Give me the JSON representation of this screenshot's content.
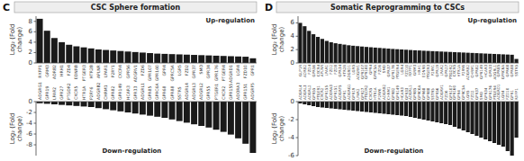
{
  "chart_data": [
    {
      "type": "bar",
      "title": "CSC Sphere formation",
      "annotations": [
        "C",
        "Up-regulation"
      ],
      "ylabel": "Log₂ (Fold\nchange)",
      "color": "#1a1a1a",
      "grid": false,
      "categories": [
        "RXFP1",
        "GRM3",
        "ADRB2",
        "HRH1",
        "FZD4",
        "EDNRB",
        "PTGER3",
        "HTR2B",
        "APLNR",
        "LPAR1",
        "P2RY1",
        "CXCR4",
        "GPR56",
        "ADGRV1",
        "FZD6",
        "GPR107",
        "GPR160",
        "GPR4",
        "GPRC5A",
        "LGR5",
        "FZD2",
        "GPR37",
        "SMO",
        "GPR34",
        "GPR176",
        "PTGER4",
        "ADGRD1",
        "LGR4",
        "FZD10",
        "GPR1"
      ],
      "values": [
        8.5,
        6.2,
        4.8,
        4.0,
        3.5,
        3.2,
        3.0,
        2.8,
        2.6,
        2.5,
        2.4,
        2.3,
        2.2,
        2.1,
        2.0,
        1.9,
        1.8,
        1.75,
        1.7,
        1.65,
        1.6,
        1.55,
        1.5,
        1.45,
        1.4,
        1.35,
        1.3,
        1.25,
        1.2,
        0.9
      ],
      "ylim": [
        0,
        9
      ],
      "yticks": [
        0,
        2,
        4,
        6,
        8
      ]
    },
    {
      "type": "bar",
      "annotations": [
        "Down-regulation"
      ],
      "ylabel": "Log₂ (Fold\nchange)",
      "color": "#1a1a1a",
      "grid": false,
      "categories": [
        "ADGRG1",
        "GPR19",
        "LPAR2",
        "GPR27",
        "PTGDR2",
        "CXCR5",
        "HTR1A",
        "P2RY6",
        "ADGRB2",
        "CHRM1",
        "GPR82",
        "GPR149",
        "HCAR3",
        "GPR33",
        "ADGRL1",
        "GPR85",
        "GPRC6A",
        "GPR68",
        "GPR88",
        "SSTR5",
        "ADGRL4",
        "ADGRL3",
        "ADGRL2",
        "GPR55",
        "PTGER1",
        "CXCR2",
        "GPR155",
        "ADORA3",
        "GPR151",
        "ADGRF5"
      ],
      "values": [
        -0.3,
        -0.4,
        -0.5,
        -0.6,
        -0.7,
        -0.8,
        -0.9,
        -1.0,
        -1.2,
        -1.4,
        -1.6,
        -1.8,
        -2.0,
        -2.2,
        -2.4,
        -2.6,
        -2.8,
        -3.0,
        -3.3,
        -3.6,
        -3.9,
        -4.2,
        -4.5,
        -4.8,
        -5.2,
        -5.6,
        -6.1,
        -6.8,
        -7.8,
        -9.5
      ],
      "ylim": [
        -10,
        0
      ],
      "yticks": [
        -8,
        -6,
        -4,
        -2,
        0
      ]
    },
    {
      "type": "bar",
      "title": "Somatic Reprogramming to CSCs",
      "annotations": [
        "D",
        "Up-regulation"
      ],
      "ylabel": "Log₂ (Fold\nchange)",
      "color": "#1a1a1a",
      "grid": false,
      "categories": [
        "GLP1R",
        "ADRB2",
        "FZD4",
        "GPR56",
        "CXCR4",
        "APLNR",
        "LPAR1",
        "FZD2",
        "FZD8",
        "GPR34",
        "HTR2B",
        "ADGRD1",
        "LGR5",
        "ADGRV1",
        "GPR107",
        "GPR160",
        "GPR4",
        "GPRC5A",
        "FZD6",
        "SMO",
        "GPR37",
        "GPR176",
        "PTGER4",
        "LGR4",
        "FZD10",
        "RXFP1",
        "GRM3",
        "HRH1",
        "EDNRB",
        "PTGER3",
        "P2RY1",
        "GPR19",
        "LPAR2",
        "GPR27",
        "PTGDR2",
        "CXCR5",
        "HTR1A",
        "P2RY6",
        "ADGRB2",
        "CHRM1",
        "GPR82",
        "GPR149",
        "HCAR3",
        "GPR33",
        "ADGRL1",
        "GPR85",
        "GPRC6A",
        "GPR68",
        "GPR88",
        "SSTR5"
      ],
      "values": [
        6.0,
        5.5,
        4.8,
        4.3,
        3.9,
        3.6,
        3.3,
        3.1,
        2.95,
        2.85,
        2.75,
        2.65,
        2.58,
        2.52,
        2.46,
        2.4,
        2.35,
        2.3,
        2.25,
        2.2,
        2.15,
        2.1,
        2.06,
        2.02,
        1.98,
        1.94,
        1.9,
        1.87,
        1.83,
        1.8,
        1.77,
        1.74,
        1.71,
        1.68,
        1.65,
        1.62,
        1.59,
        1.56,
        1.53,
        1.5,
        1.47,
        1.44,
        1.41,
        1.38,
        1.35,
        1.32,
        1.29,
        1.26,
        1.23,
        0.6
      ],
      "ylim": [
        0,
        7
      ],
      "yticks": [
        0,
        2,
        4,
        6
      ]
    },
    {
      "type": "bar",
      "annotations": [
        "Down-regulation"
      ],
      "ylabel": "Log₂ (Fold\nchange)",
      "color": "#1a1a1a",
      "grid": false,
      "categories": [
        "ADGRL4",
        "ADGRL3",
        "ADGRL2",
        "GPR55",
        "PTGER1",
        "CXCR2",
        "GPR155",
        "ADORA3",
        "GPR151",
        "ADGRF5",
        "GPR1",
        "ADGRG1",
        "GPR19",
        "LPAR2",
        "GPR27",
        "PTGDR2",
        "CXCR5",
        "HTR1A",
        "P2RY6",
        "ADGRB2",
        "CHRM1",
        "GPR82",
        "GPR149",
        "HCAR3",
        "GPR33",
        "ADGRL1",
        "GPR85",
        "GPRC6A",
        "GPR68",
        "GPR88",
        "SSTR5",
        "GPR56",
        "ADGRV1",
        "FZD6",
        "GPR107",
        "GPR160",
        "GPR4",
        "GPRC5A",
        "LGR5",
        "FZD2",
        "GPR37",
        "SMO",
        "GPR34",
        "GPR176",
        "PTGER4",
        "ADGRD1",
        "LGR4",
        "FZD10",
        "GPR1",
        "RXFP1"
      ],
      "values": [
        -0.2,
        -0.3,
        -0.4,
        -0.5,
        -0.6,
        -0.65,
        -0.7,
        -0.75,
        -0.8,
        -0.85,
        -0.9,
        -0.95,
        -1.0,
        -1.05,
        -1.1,
        -1.15,
        -1.2,
        -1.25,
        -1.3,
        -1.35,
        -1.4,
        -1.45,
        -1.5,
        -1.55,
        -1.6,
        -1.7,
        -1.8,
        -1.9,
        -2.0,
        -2.1,
        -2.2,
        -2.3,
        -2.4,
        -2.5,
        -2.6,
        -2.8,
        -3.0,
        -3.2,
        -3.4,
        -3.6,
        -3.8,
        -4.0,
        -4.2,
        -4.4,
        -4.6,
        -4.8,
        -5.0,
        -5.5,
        -6.0,
        -4.0
      ],
      "ylim": [
        -6,
        0
      ],
      "yticks": [
        -6,
        -4,
        -2,
        0
      ]
    }
  ]
}
